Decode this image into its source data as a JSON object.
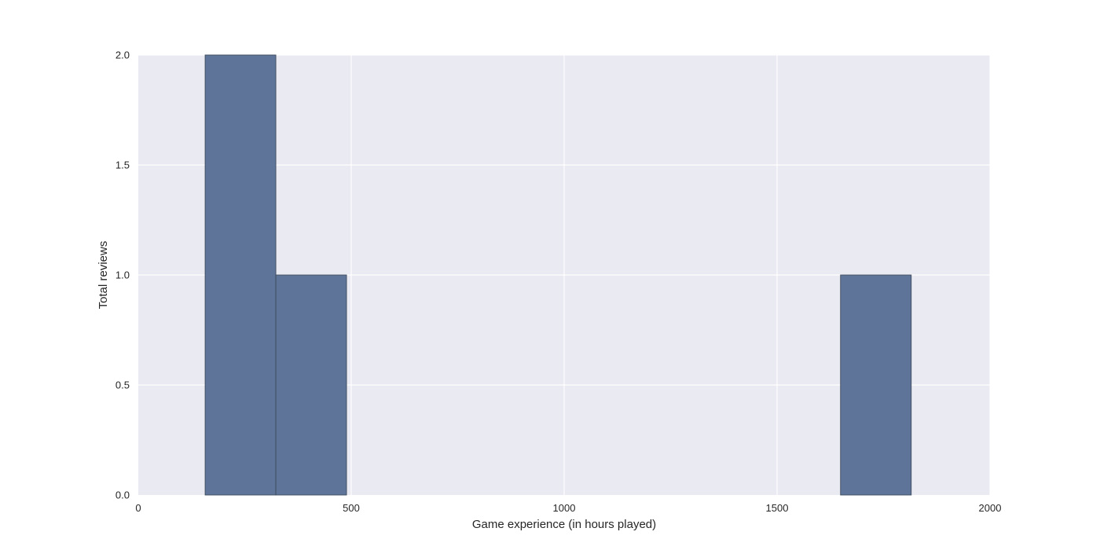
{
  "chart_data": {
    "type": "bar",
    "title": "",
    "xlabel": "Game experience (in hours played)",
    "ylabel": "Total reviews",
    "xlim": [
      0,
      2000
    ],
    "ylim": [
      0,
      2.0
    ],
    "xticks": [
      "0",
      "500",
      "1000",
      "1500",
      "2000"
    ],
    "xtick_values": [
      0,
      500,
      1000,
      1500,
      2000
    ],
    "yticks": [
      "0.0",
      "0.5",
      "1.0",
      "1.5",
      "2.0"
    ],
    "ytick_values": [
      0,
      0.5,
      1.0,
      1.5,
      2.0
    ],
    "grid": true,
    "bars": [
      {
        "x_start": 157,
        "x_end": 323,
        "value": 2
      },
      {
        "x_start": 323,
        "x_end": 489,
        "value": 1
      },
      {
        "x_start": 1649,
        "x_end": 1815,
        "value": 1
      }
    ],
    "bar_color": "#5E7599",
    "background_color": "#EAEAF2"
  }
}
